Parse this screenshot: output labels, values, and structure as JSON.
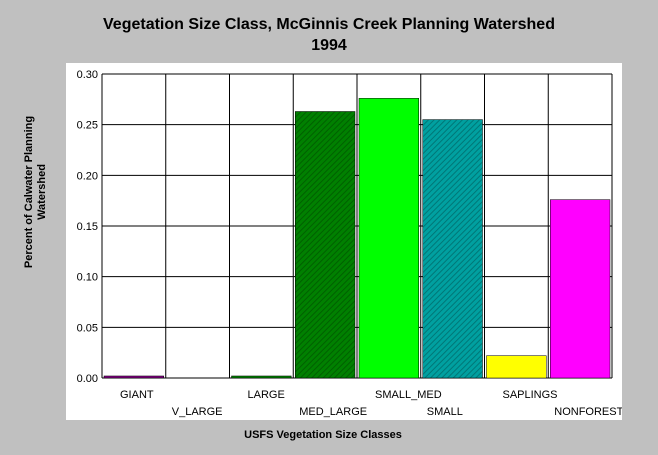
{
  "chart_data": {
    "type": "bar",
    "title_lines": [
      "Vegetation Size Class, McGinnis Creek Planning Watershed",
      "1994"
    ],
    "xlabel": "USFS Vegetation Size Classes",
    "ylabel_lines": [
      "Percent of Calwater Planning",
      "Watershed"
    ],
    "ylim": [
      0,
      0.3
    ],
    "yticks": [
      "0.00",
      "0.05",
      "0.10",
      "0.15",
      "0.20",
      "0.25",
      "0.30"
    ],
    "grid": true,
    "categories": [
      "GIANT",
      "V_LARGE",
      "LARGE",
      "MED_LARGE",
      "SMALL_MED",
      "SMALL",
      "SAPLINGS",
      "NONFOREST"
    ],
    "values": [
      0.002,
      0.0,
      0.002,
      0.263,
      0.276,
      0.255,
      0.022,
      0.176
    ],
    "colors": [
      "#800080",
      "#ffffff",
      "#008000",
      "#008000",
      "#00ff00",
      "#009999",
      "#ffff00",
      "#ff00ff"
    ],
    "patterns": [
      "solid",
      "solid",
      "solid",
      "hatch",
      "solid",
      "hatch",
      "solid",
      "solid"
    ]
  }
}
